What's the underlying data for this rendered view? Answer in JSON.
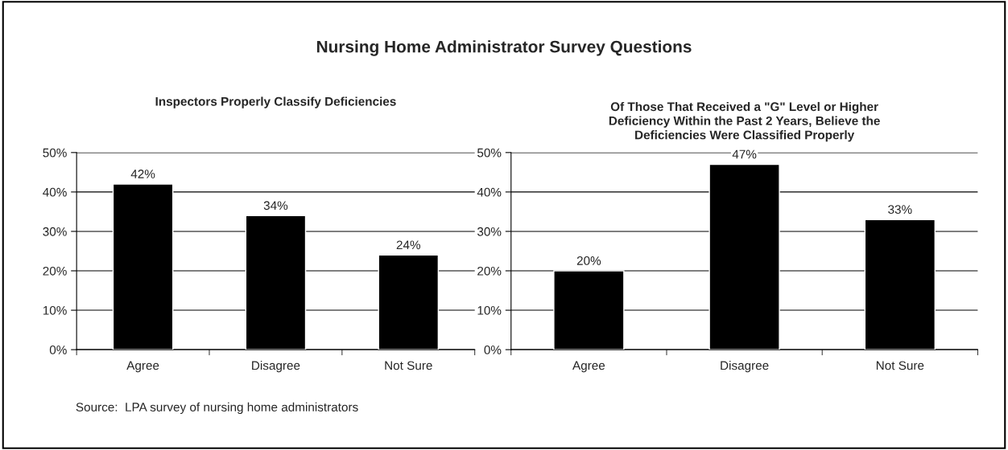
{
  "chart_data": [
    {
      "type": "bar",
      "title": "Inspectors Properly Classify Deficiencies",
      "categories": [
        "Agree",
        "Disagree",
        "Not Sure"
      ],
      "values": [
        42,
        34,
        24
      ],
      "color": "#000000",
      "ylim": [
        0,
        50
      ],
      "yticks": [
        {
          "value": 0,
          "label": "0%"
        },
        {
          "value": 10,
          "label": "10%"
        },
        {
          "value": 20,
          "label": "20%"
        },
        {
          "value": 30,
          "label": "30%"
        },
        {
          "value": 40,
          "label": "40%"
        },
        {
          "value": 50,
          "label": "50%"
        }
      ],
      "value_labels": [
        "42%",
        "34%",
        "24%"
      ],
      "grid": "y",
      "legend": false,
      "annotations": [
        "Nursing Home Administrator Survey Questions",
        "Source:  LPA survey of nursing home administrators"
      ]
    },
    {
      "type": "bar",
      "title": "Of Those That Received a \"G\" Level or Higher\nDeficiency Within the Past 2 Years, Believe the\nDeficiencies Were Classified Properly",
      "categories": [
        "Agree",
        "Disagree",
        "Not Sure"
      ],
      "values": [
        20,
        47,
        33
      ],
      "color": "#000000",
      "ylim": [
        0,
        50
      ],
      "yticks": [
        {
          "value": 0,
          "label": "0%"
        },
        {
          "value": 10,
          "label": "10%"
        },
        {
          "value": 20,
          "label": "20%"
        },
        {
          "value": 30,
          "label": "30%"
        },
        {
          "value": 40,
          "label": "40%"
        },
        {
          "value": 50,
          "label": "50%"
        }
      ],
      "value_labels": [
        "20%",
        "47%",
        "33%"
      ],
      "grid": "y",
      "legend": false
    }
  ]
}
